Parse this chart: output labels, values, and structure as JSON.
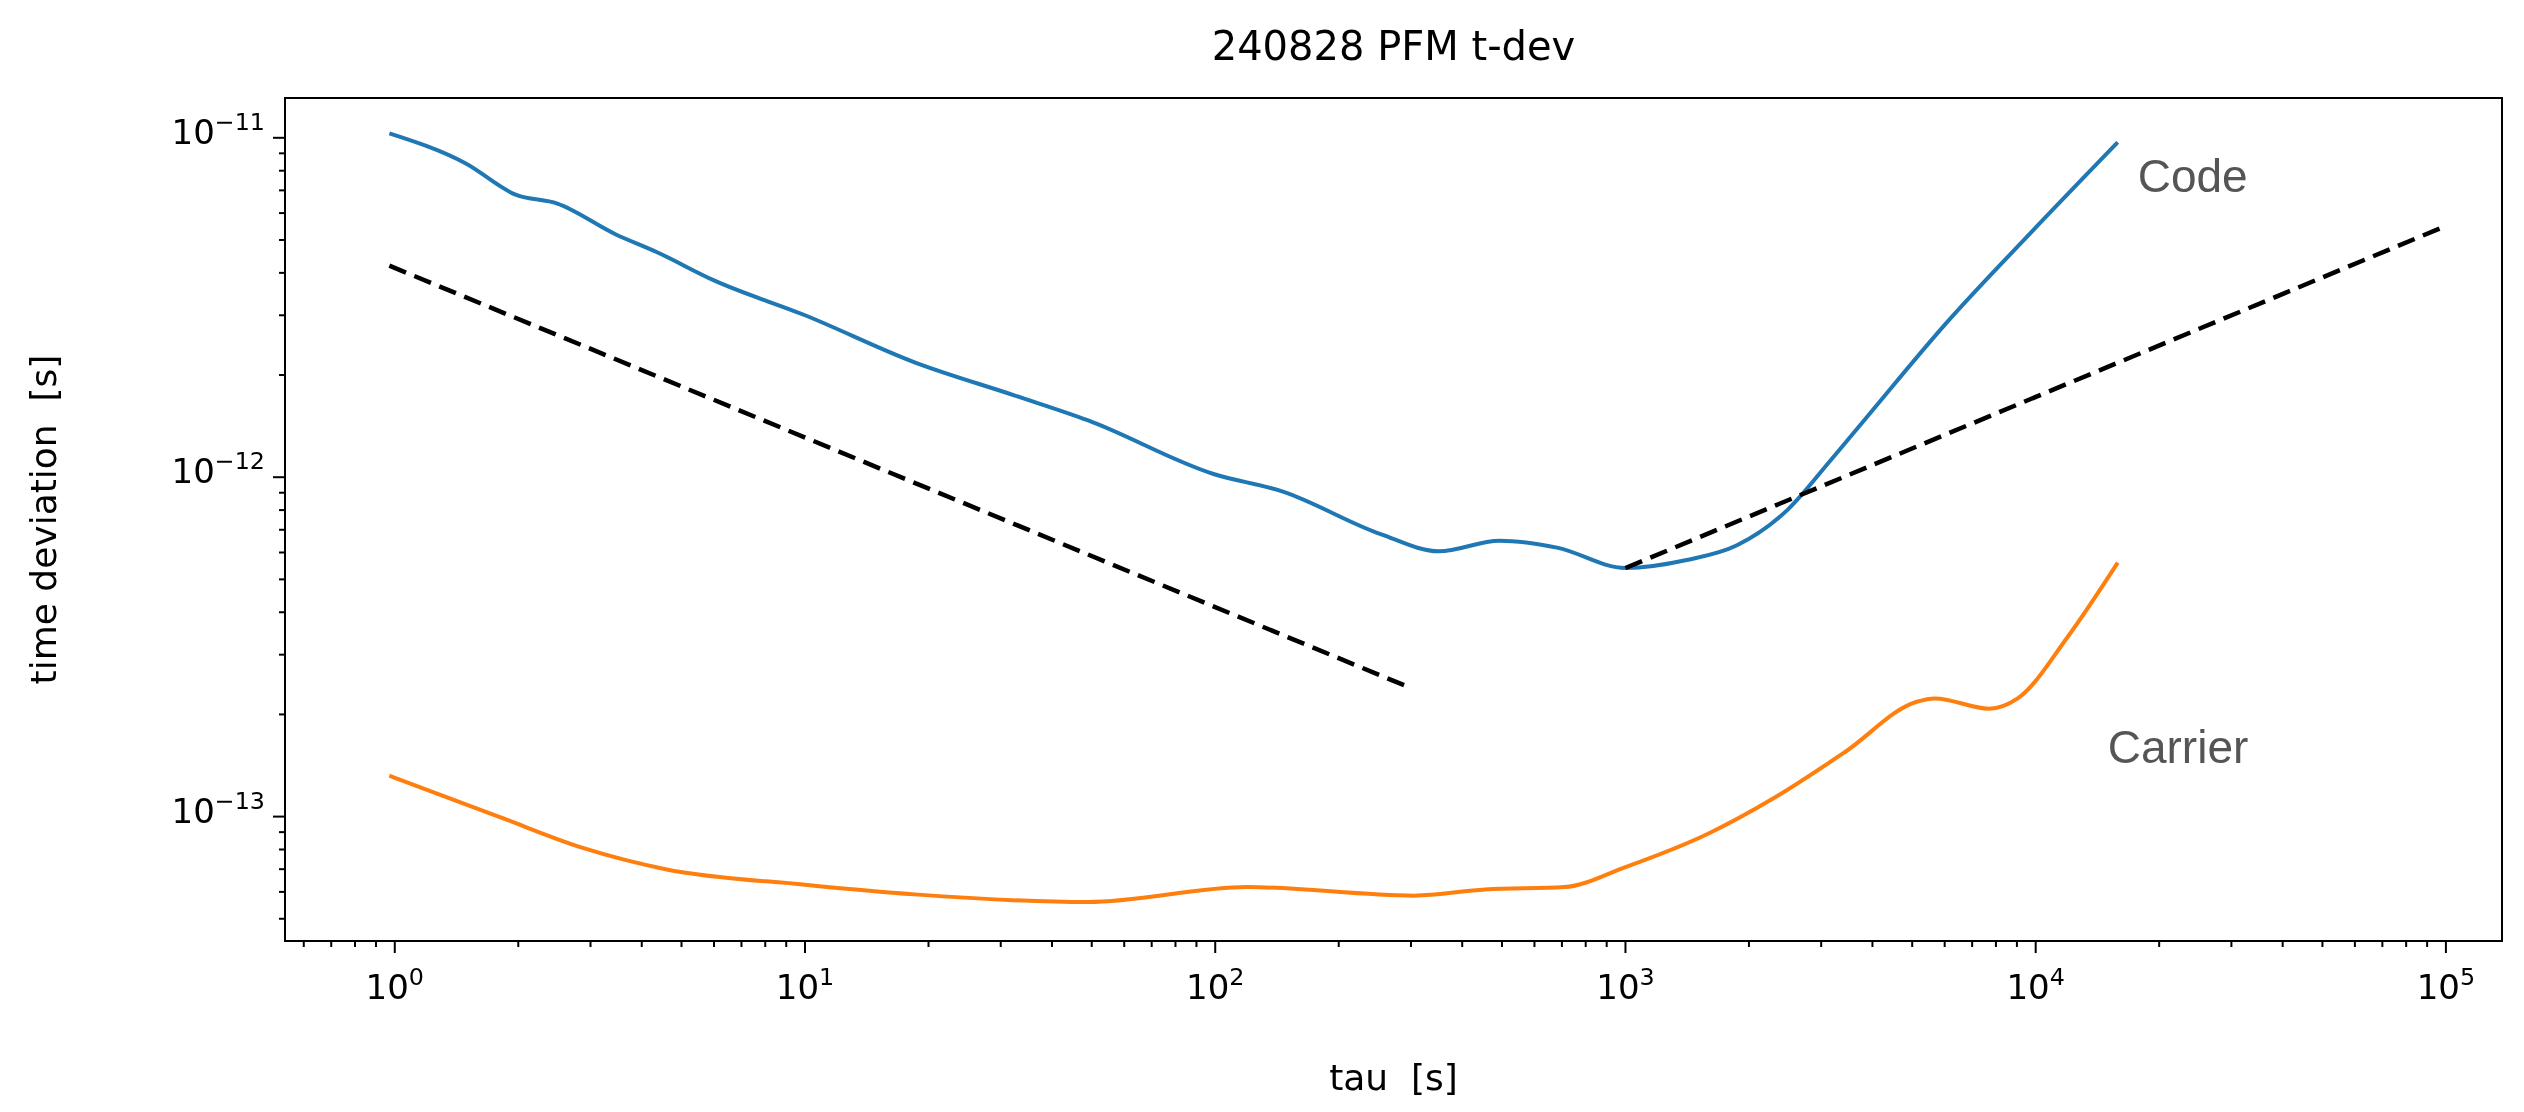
{
  "chart_data": {
    "type": "line",
    "title": "240828 PFM t-dev",
    "xlabel": "tau  [s]",
    "ylabel": "time deviation  [s]",
    "log": "xy",
    "line_style": "solid",
    "marker": "none",
    "xlim": [
      0.54,
      137000
    ],
    "ylim": [
      4.3e-14,
      1.31e-11
    ],
    "xticks": [
      {
        "value": 0.6,
        "label": null
      },
      {
        "value": 0.7,
        "label": null
      },
      {
        "value": 0.8,
        "label": null
      },
      {
        "value": 0.9,
        "label": null
      },
      {
        "value": 1,
        "label": "10$^{0}$"
      },
      {
        "value": 2,
        "label": null
      },
      {
        "value": 3,
        "label": null
      },
      {
        "value": 4,
        "label": null
      },
      {
        "value": 5,
        "label": null
      },
      {
        "value": 6,
        "label": null
      },
      {
        "value": 7,
        "label": null
      },
      {
        "value": 8,
        "label": null
      },
      {
        "value": 9,
        "label": null
      },
      {
        "value": 10,
        "label": "10$^{1}$"
      },
      {
        "value": 20,
        "label": null
      },
      {
        "value": 30,
        "label": null
      },
      {
        "value": 40,
        "label": null
      },
      {
        "value": 50,
        "label": null
      },
      {
        "value": 60,
        "label": null
      },
      {
        "value": 70,
        "label": null
      },
      {
        "value": 80,
        "label": null
      },
      {
        "value": 90,
        "label": null
      },
      {
        "value": 100,
        "label": "10$^{2}$"
      },
      {
        "value": 200,
        "label": null
      },
      {
        "value": 300,
        "label": null
      },
      {
        "value": 400,
        "label": null
      },
      {
        "value": 500,
        "label": null
      },
      {
        "value": 600,
        "label": null
      },
      {
        "value": 700,
        "label": null
      },
      {
        "value": 800,
        "label": null
      },
      {
        "value": 900,
        "label": null
      },
      {
        "value": 1000,
        "label": "10$^{3}$"
      },
      {
        "value": 2000,
        "label": null
      },
      {
        "value": 3000,
        "label": null
      },
      {
        "value": 4000,
        "label": null
      },
      {
        "value": 5000,
        "label": null
      },
      {
        "value": 6000,
        "label": null
      },
      {
        "value": 7000,
        "label": null
      },
      {
        "value": 8000,
        "label": null
      },
      {
        "value": 9000,
        "label": null
      },
      {
        "value": 10000,
        "label": "10$^{4}$"
      },
      {
        "value": 20000,
        "label": null
      },
      {
        "value": 30000,
        "label": null
      },
      {
        "value": 40000,
        "label": null
      },
      {
        "value": 50000,
        "label": null
      },
      {
        "value": 60000,
        "label": null
      },
      {
        "value": 70000,
        "label": null
      },
      {
        "value": 80000,
        "label": null
      },
      {
        "value": 90000,
        "label": null
      },
      {
        "value": 100000,
        "label": "10$^{5}$"
      }
    ],
    "yticks": [
      {
        "value": 5e-14,
        "label": null
      },
      {
        "value": 6e-14,
        "label": null
      },
      {
        "value": 7e-14,
        "label": null
      },
      {
        "value": 8e-14,
        "label": null
      },
      {
        "value": 9e-14,
        "label": null
      },
      {
        "value": 1e-13,
        "label": "10$^{−13}$"
      },
      {
        "value": 2e-13,
        "label": null
      },
      {
        "value": 3e-13,
        "label": null
      },
      {
        "value": 4e-13,
        "label": null
      },
      {
        "value": 5e-13,
        "label": null
      },
      {
        "value": 6e-13,
        "label": null
      },
      {
        "value": 7e-13,
        "label": null
      },
      {
        "value": 8e-13,
        "label": null
      },
      {
        "value": 9e-13,
        "label": null
      },
      {
        "value": 1e-12,
        "label": "10$^{−12}$"
      },
      {
        "value": 2e-12,
        "label": null
      },
      {
        "value": 3e-12,
        "label": null
      },
      {
        "value": 4e-12,
        "label": null
      },
      {
        "value": 5e-12,
        "label": null
      },
      {
        "value": 6e-12,
        "label": null
      },
      {
        "value": 7e-12,
        "label": null
      },
      {
        "value": 8e-12,
        "label": null
      },
      {
        "value": 9e-12,
        "label": null
      },
      {
        "value": 1e-11,
        "label": "10$^{−11}$"
      }
    ],
    "series": [
      {
        "name": "Code",
        "color": "#1f77b4",
        "x": [
          0.97,
          1.49,
          1.97,
          2.49,
          3.45,
          4.36,
          6.0,
          10,
          18.5,
          32.5,
          49,
          99.5,
          145,
          253,
          351,
          493,
          681,
          1000,
          1410,
          1870,
          2480,
          3160,
          3870,
          6030,
          9800,
          15850
        ],
        "values": [
          1.03e-11,
          8.4e-12,
          6.8e-12,
          6.4e-12,
          5.2e-12,
          4.6e-12,
          3.8e-12,
          3e-12,
          2.18e-12,
          1.74e-12,
          1.47e-12,
          1.02e-12,
          9.1e-13,
          6.8e-13,
          6.05e-13,
          6.5e-13,
          6.2e-13,
          5.4e-13,
          5.7e-13,
          6.3e-13,
          8e-13,
          1.12e-12,
          1.5e-12,
          2.83e-12,
          5.3e-12,
          9.7e-12
        ]
      },
      {
        "name": "Carrier",
        "color": "#ff7f0e",
        "x": [
          0.97,
          1.79,
          2.86,
          4.57,
          10,
          18.5,
          49,
          120,
          305,
          455,
          710,
          1000,
          1590,
          2290,
          3430,
          5130,
          5680,
          7700,
          9040,
          12000,
          15850
        ],
        "values": [
          1.32e-13,
          1e-13,
          8.1e-14,
          7e-14,
          6.3e-14,
          5.9e-14,
          5.6e-14,
          6.2e-14,
          5.85e-14,
          6.1e-14,
          6.2e-14,
          7.1e-14,
          8.9e-14,
          1.13e-13,
          1.55e-13,
          2.18e-13,
          2.23e-13,
          2.08e-13,
          2.23e-13,
          3.4e-13,
          5.6e-13
        ]
      },
      {
        "type": "line",
        "color": "#000000",
        "line_style": "dashed",
        "x": [
          0.97,
          298
        ],
        "values": [
          4.2e-12,
          2.4e-13
        ]
      },
      {
        "type": "line",
        "color": "#000000",
        "line_style": "dashed",
        "x": [
          1000,
          100000
        ],
        "values": [
          5.4e-13,
          5.5e-12
        ]
      }
    ]
  }
}
